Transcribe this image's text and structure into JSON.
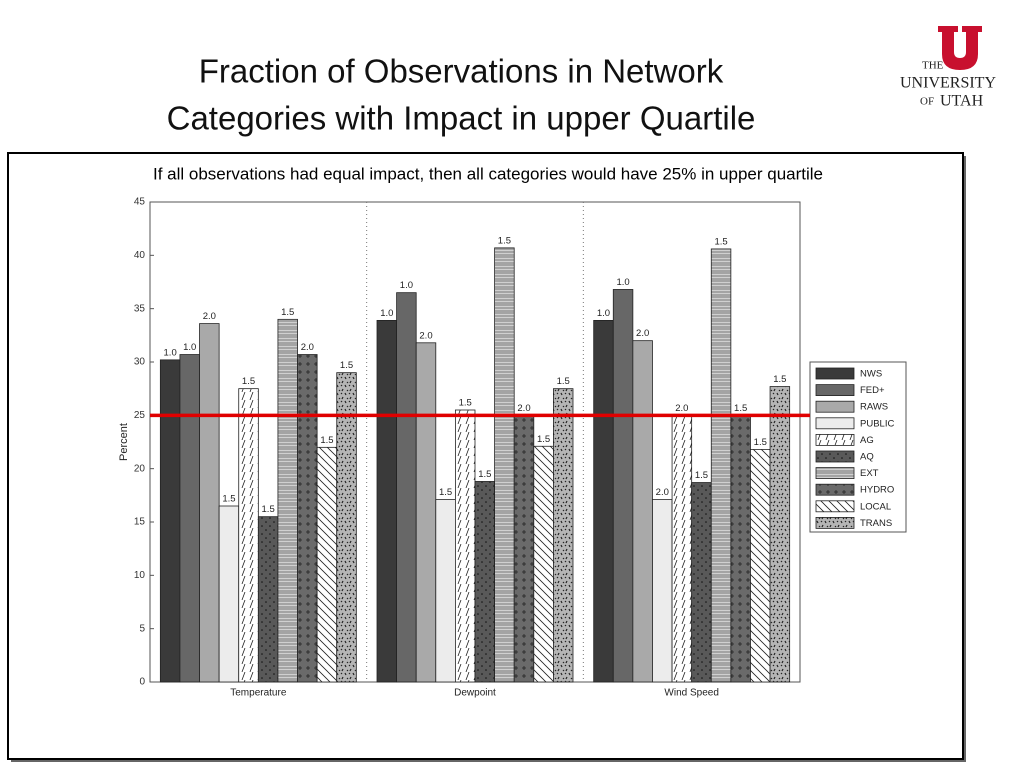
{
  "title_lines": [
    "Fraction of Observations in Network",
    "Categories with Impact in upper Quartile"
  ],
  "logo": {
    "line1": "THE",
    "line2": "UNIVERSITY",
    "line3": "OF",
    "line4": "UTAH"
  },
  "chart_data": {
    "type": "bar",
    "subtitle": "If all observations had equal impact, then all categories would have 25% in upper quartile",
    "y_label": "Percent",
    "categories": [
      "Temperature",
      "Dewpoint",
      "Wind Speed"
    ],
    "ylim": [
      0,
      45
    ],
    "yticks": [
      0,
      5,
      10,
      15,
      20,
      25,
      30,
      35,
      40,
      45
    ],
    "reference_line": {
      "value": 25,
      "color": "#e00000"
    },
    "series": [
      {
        "name": "NWS",
        "color": "#3a3a3a",
        "pattern": "solid",
        "values": [
          30.2,
          33.9,
          33.9
        ],
        "bar_annotations": [
          "1.0",
          "1.0",
          "1.0"
        ]
      },
      {
        "name": "FED+",
        "color": "#676767",
        "pattern": "solid",
        "values": [
          30.7,
          36.5,
          36.8
        ],
        "bar_annotations": [
          "1.0",
          "1.0",
          "1.0"
        ]
      },
      {
        "name": "RAWS",
        "color": "#a9a9a9",
        "pattern": "solid",
        "values": [
          33.6,
          31.8,
          32.0
        ],
        "bar_annotations": [
          "2.0",
          "2.0",
          "2.0"
        ]
      },
      {
        "name": "PUBLIC",
        "color": "#ececec",
        "pattern": "solid",
        "values": [
          16.5,
          17.1,
          17.1
        ],
        "bar_annotations": [
          "1.5",
          "1.5",
          "2.0"
        ]
      },
      {
        "name": "AG",
        "color": "#ffffff",
        "pattern": "slash",
        "values": [
          27.5,
          25.5,
          25.0
        ],
        "bar_annotations": [
          "1.5",
          "1.5",
          "2.0"
        ]
      },
      {
        "name": "AQ",
        "color": "#595959",
        "pattern": "dots",
        "values": [
          15.5,
          18.8,
          18.7
        ],
        "bar_annotations": [
          "1.5",
          "1.5",
          "1.5"
        ]
      },
      {
        "name": "EXT",
        "color": "#d0d0d0",
        "pattern": "hlines",
        "values": [
          34.0,
          40.7,
          40.6
        ],
        "bar_annotations": [
          "1.5",
          "1.5",
          "1.5"
        ]
      },
      {
        "name": "HYDRO",
        "color": "#6a6a6a",
        "pattern": "plus",
        "values": [
          30.7,
          25.0,
          25.0
        ],
        "bar_annotations": [
          "2.0",
          "2.0",
          "1.5"
        ]
      },
      {
        "name": "LOCAL",
        "color": "#ffffff",
        "pattern": "diag",
        "values": [
          22.0,
          22.1,
          21.8
        ],
        "bar_annotations": [
          "1.5",
          "1.5",
          "1.5"
        ]
      },
      {
        "name": "TRANS",
        "color": "#b5b5b5",
        "pattern": "speckle",
        "values": [
          29.0,
          27.5,
          27.7
        ],
        "bar_annotations": [
          "1.5",
          "1.5",
          "1.5"
        ]
      }
    ]
  }
}
